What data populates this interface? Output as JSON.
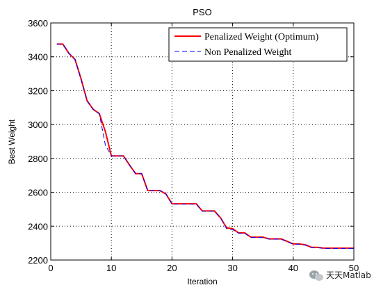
{
  "chart_data": {
    "type": "line",
    "title": "PSO",
    "xlabel": "Iteration",
    "ylabel": "Best Weight",
    "xlim": [
      0,
      50
    ],
    "ylim": [
      2200,
      3600
    ],
    "xticks": [
      0,
      10,
      20,
      30,
      40,
      50
    ],
    "yticks": [
      2200,
      2400,
      2600,
      2800,
      3000,
      3200,
      3400,
      3600
    ],
    "grid": true,
    "legend_position": "top-right",
    "series": [
      {
        "name": "Penalized Weight (Optimum)",
        "color": "#ff0000",
        "style": "solid",
        "x": [
          1,
          2,
          3,
          4,
          5,
          6,
          7,
          8,
          9,
          10,
          11,
          12,
          13,
          14,
          15,
          16,
          17,
          18,
          19,
          20,
          21,
          22,
          23,
          24,
          25,
          26,
          27,
          28,
          29,
          30,
          31,
          32,
          33,
          34,
          35,
          36,
          37,
          38,
          39,
          40,
          41,
          42,
          43,
          44,
          45,
          46,
          47,
          48,
          49,
          50
        ],
        "y": [
          3475,
          3475,
          3420,
          3385,
          3270,
          3140,
          3090,
          3065,
          2960,
          2815,
          2815,
          2815,
          2760,
          2710,
          2710,
          2610,
          2610,
          2610,
          2590,
          2532,
          2532,
          2532,
          2532,
          2532,
          2490,
          2490,
          2490,
          2450,
          2390,
          2385,
          2360,
          2360,
          2335,
          2335,
          2335,
          2325,
          2325,
          2325,
          2310,
          2295,
          2295,
          2290,
          2275,
          2275,
          2270,
          2270,
          2270,
          2270,
          2270,
          2270
        ]
      },
      {
        "name": "Non Penalized Weight",
        "color": "#0000ff",
        "style": "dashed",
        "x": [
          1,
          2,
          3,
          4,
          5,
          6,
          7,
          8,
          9,
          10,
          11,
          12,
          13,
          14,
          15,
          16,
          17,
          18,
          19,
          20,
          21,
          22,
          23,
          24,
          25,
          26,
          27,
          28,
          29,
          30,
          31,
          32,
          33,
          34,
          35,
          36,
          37,
          38,
          39,
          40,
          41,
          42,
          43,
          44,
          45,
          46,
          47,
          48,
          49,
          50
        ],
        "y": [
          3475,
          3475,
          3420,
          3385,
          3265,
          3140,
          3090,
          3065,
          2880,
          2815,
          2815,
          2815,
          2760,
          2710,
          2710,
          2610,
          2610,
          2610,
          2590,
          2530,
          2530,
          2530,
          2530,
          2530,
          2488,
          2488,
          2488,
          2448,
          2385,
          2380,
          2358,
          2358,
          2333,
          2333,
          2333,
          2323,
          2323,
          2323,
          2308,
          2293,
          2293,
          2288,
          2273,
          2273,
          2268,
          2268,
          2268,
          2268,
          2268,
          2268
        ]
      }
    ]
  },
  "watermark": {
    "text": "天天Matlab",
    "icon": "wechat-icon"
  }
}
